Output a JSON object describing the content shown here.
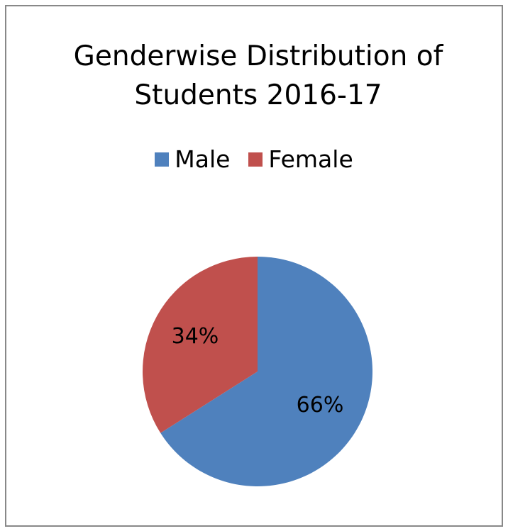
{
  "chart_data": {
    "type": "pie",
    "title": "Genderwise Distribution of Students 2016-17",
    "categories": [
      "Male",
      "Female"
    ],
    "values": [
      66,
      34
    ],
    "value_labels": [
      "66%",
      "34%"
    ],
    "colors": [
      "#4f81bd",
      "#c0504d"
    ],
    "legend": "top"
  }
}
